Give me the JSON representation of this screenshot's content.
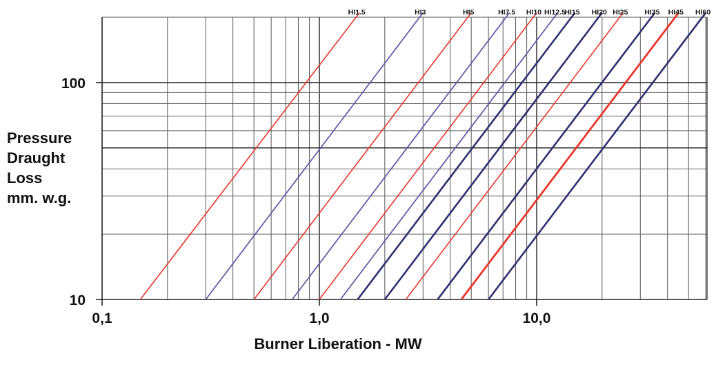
{
  "chart_data": {
    "type": "line",
    "title": "",
    "xlabel": "Burner Liberation - MW",
    "ylabel": [
      "Pressure",
      "Draught",
      "Loss",
      "mm. w.g."
    ],
    "x_scale": "log",
    "y_scale": "log",
    "xlim": [
      0.1,
      60
    ],
    "ylim": [
      10,
      210
    ],
    "x_ticks": [
      {
        "value": 0.1,
        "label": "0,1"
      },
      {
        "value": 1,
        "label": "1,0"
      },
      {
        "value": 10,
        "label": "10,0"
      }
    ],
    "y_ticks": [
      {
        "value": 10,
        "label": "10"
      },
      {
        "value": 100,
        "label": "100"
      }
    ],
    "grid": true,
    "x_gridlines": [
      0.2,
      0.3,
      0.4,
      0.5,
      0.6,
      0.7,
      0.8,
      0.9,
      1,
      2,
      3,
      4,
      5,
      6,
      7,
      8,
      9,
      10,
      20,
      30,
      40,
      50,
      60
    ],
    "y_gridlines": [
      20,
      30,
      40,
      50,
      60,
      70,
      80,
      90,
      100
    ],
    "legend": "labels at top end of each line",
    "series": [
      {
        "name": "HI1.5",
        "color": "#e8352a",
        "x": [
          0.15,
          1.53
        ],
        "y": [
          10,
          210
        ]
      },
      {
        "name": "HI3",
        "color": "#5a55a6",
        "x": [
          0.3,
          3.0
        ],
        "y": [
          10,
          210
        ]
      },
      {
        "name": "HI5",
        "color": "#e8352a",
        "x": [
          0.5,
          5.0
        ],
        "y": [
          10,
          210
        ]
      },
      {
        "name": "HI7.5",
        "color": "#5a55a6",
        "x": [
          0.75,
          7.5
        ],
        "y": [
          10,
          210
        ]
      },
      {
        "name": "HI10",
        "color": "#e8352a",
        "x": [
          1.0,
          10.0
        ],
        "y": [
          10,
          210
        ]
      },
      {
        "name": "HI12.5",
        "color": "#5a55a6",
        "x": [
          1.25,
          12.5
        ],
        "y": [
          10,
          210
        ]
      },
      {
        "name": "HI15",
        "color": "#2d2e6e",
        "x": [
          1.5,
          15.0
        ],
        "y": [
          10,
          210
        ]
      },
      {
        "name": "HI20",
        "color": "#2d2e6e",
        "x": [
          2.0,
          20.0
        ],
        "y": [
          10,
          210
        ]
      },
      {
        "name": "HI25",
        "color": "#e8352a",
        "x": [
          2.5,
          25.0
        ],
        "y": [
          10,
          210
        ]
      },
      {
        "name": "HI35",
        "color": "#2d2e6e",
        "x": [
          3.5,
          35.0
        ],
        "y": [
          10,
          210
        ]
      },
      {
        "name": "HI45",
        "color": "#e8352a",
        "x": [
          4.5,
          45.0
        ],
        "y": [
          10,
          210
        ]
      },
      {
        "name": "HI60",
        "color": "#2d2e6e",
        "x": [
          6.0,
          60.0
        ],
        "y": [
          10,
          210
        ]
      }
    ]
  }
}
